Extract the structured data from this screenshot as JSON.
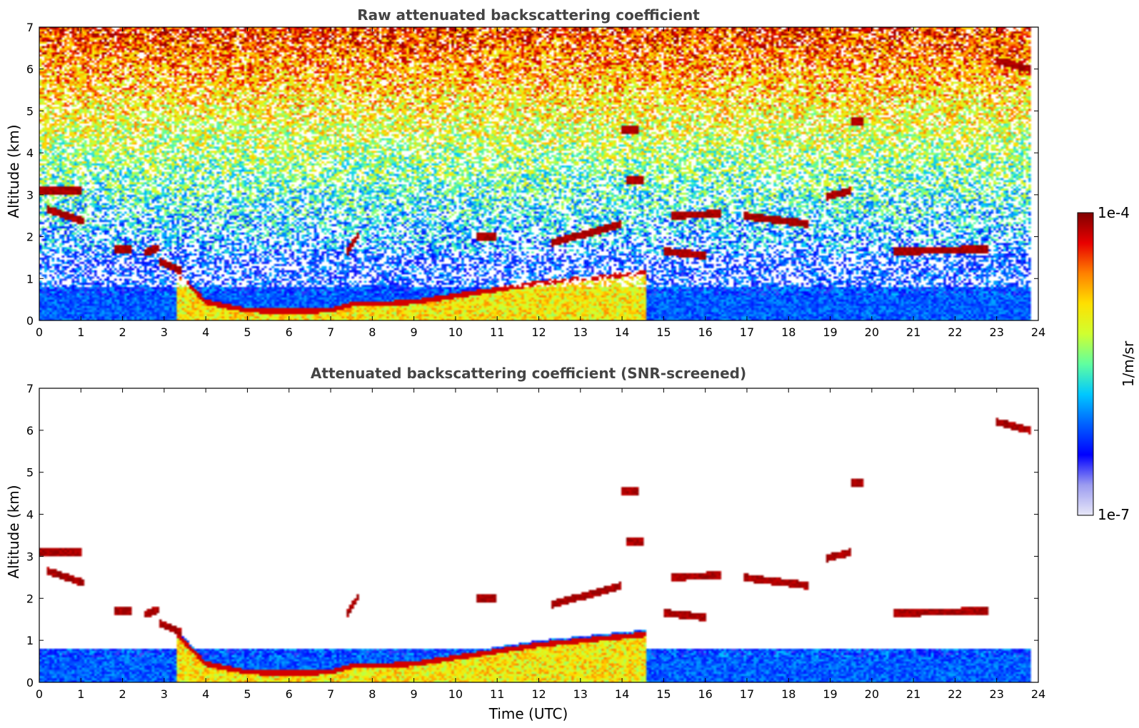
{
  "chart_data": [
    {
      "type": "heatmap",
      "title": "Raw attenuated backscattering coefficient",
      "xlabel": "",
      "ylabel": "Altitude (km)",
      "xlim": [
        0,
        24
      ],
      "ylim": [
        0,
        7
      ],
      "x_ticks": [
        0,
        1,
        2,
        3,
        4,
        5,
        6,
        7,
        8,
        9,
        10,
        11,
        12,
        13,
        14,
        15,
        16,
        17,
        18,
        19,
        20,
        21,
        22,
        23,
        24
      ],
      "y_ticks": [
        0,
        1,
        2,
        3,
        4,
        5,
        6,
        7
      ],
      "data_end_hour": 23.8,
      "screened": false,
      "features": [
        {
          "kind": "boundary_layer",
          "x": [
            3.3,
            4,
            5,
            6,
            7,
            7.5,
            8,
            9,
            10,
            11,
            12,
            13,
            14,
            14.6
          ],
          "y": [
            1.2,
            0.5,
            0.3,
            0.28,
            0.3,
            0.45,
            0.45,
            0.5,
            0.65,
            0.8,
            0.95,
            1.05,
            1.15,
            1.2
          ]
        },
        {
          "kind": "cloud",
          "x": [
            0,
            1.0
          ],
          "y": [
            3.1,
            3.1
          ]
        },
        {
          "kind": "cloud",
          "x": [
            0.2,
            1.1
          ],
          "y": [
            2.65,
            2.35
          ]
        },
        {
          "kind": "cloud",
          "x": [
            1.8,
            2.2
          ],
          "y": [
            1.7,
            1.7
          ]
        },
        {
          "kind": "cloud",
          "x": [
            2.5,
            2.9
          ],
          "y": [
            1.6,
            1.75
          ]
        },
        {
          "kind": "cloud",
          "x": [
            2.9,
            3.4
          ],
          "y": [
            1.4,
            1.2
          ]
        },
        {
          "kind": "cloud",
          "x": [
            7.4,
            7.7
          ],
          "y": [
            1.65,
            2.1
          ]
        },
        {
          "kind": "cloud",
          "x": [
            10.5,
            11.0
          ],
          "y": [
            2.0,
            2.0
          ]
        },
        {
          "kind": "cloud",
          "x": [
            12.3,
            14.0
          ],
          "y": [
            1.85,
            2.3
          ]
        },
        {
          "kind": "cloud",
          "x": [
            14.0,
            14.4
          ],
          "y": [
            4.55,
            4.55
          ]
        },
        {
          "kind": "cloud",
          "x": [
            14.1,
            14.5
          ],
          "y": [
            3.35,
            3.35
          ]
        },
        {
          "kind": "cloud",
          "x": [
            15.2,
            16.4
          ],
          "y": [
            2.5,
            2.55
          ]
        },
        {
          "kind": "cloud",
          "x": [
            16.9,
            18.5
          ],
          "y": [
            2.5,
            2.3
          ]
        },
        {
          "kind": "cloud",
          "x": [
            18.9,
            19.5
          ],
          "y": [
            2.95,
            3.1
          ]
        },
        {
          "kind": "cloud",
          "x": [
            15.0,
            16.0
          ],
          "y": [
            1.65,
            1.55
          ]
        },
        {
          "kind": "cloud",
          "x": [
            20.5,
            22.8
          ],
          "y": [
            1.65,
            1.7
          ]
        },
        {
          "kind": "cloud",
          "x": [
            23.0,
            23.8
          ],
          "y": [
            6.2,
            6.0
          ]
        },
        {
          "kind": "cloud",
          "x": [
            19.5,
            19.8
          ],
          "y": [
            4.75,
            4.75
          ]
        }
      ]
    },
    {
      "type": "heatmap",
      "title": "Attenuated backscattering coefficient (SNR-screened)",
      "xlabel": "Time (UTC)",
      "ylabel": "Altitude (km)",
      "xlim": [
        0,
        24
      ],
      "ylim": [
        0,
        7
      ],
      "x_ticks": [
        0,
        1,
        2,
        3,
        4,
        5,
        6,
        7,
        8,
        9,
        10,
        11,
        12,
        13,
        14,
        15,
        16,
        17,
        18,
        19,
        20,
        21,
        22,
        23,
        24
      ],
      "y_ticks": [
        0,
        1,
        2,
        3,
        4,
        5,
        6,
        7
      ],
      "data_end_hour": 23.8,
      "screened": true
    }
  ],
  "colorbar": {
    "label": "1/m/sr",
    "max_label": "1e-4",
    "min_label": "1e-7",
    "colormap": [
      "#e8e8f8",
      "#9c9cf0",
      "#0000ff",
      "#0060ff",
      "#00c8ff",
      "#60ffa0",
      "#d0ff30",
      "#ffe000",
      "#ff8000",
      "#e80000",
      "#800000"
    ]
  }
}
